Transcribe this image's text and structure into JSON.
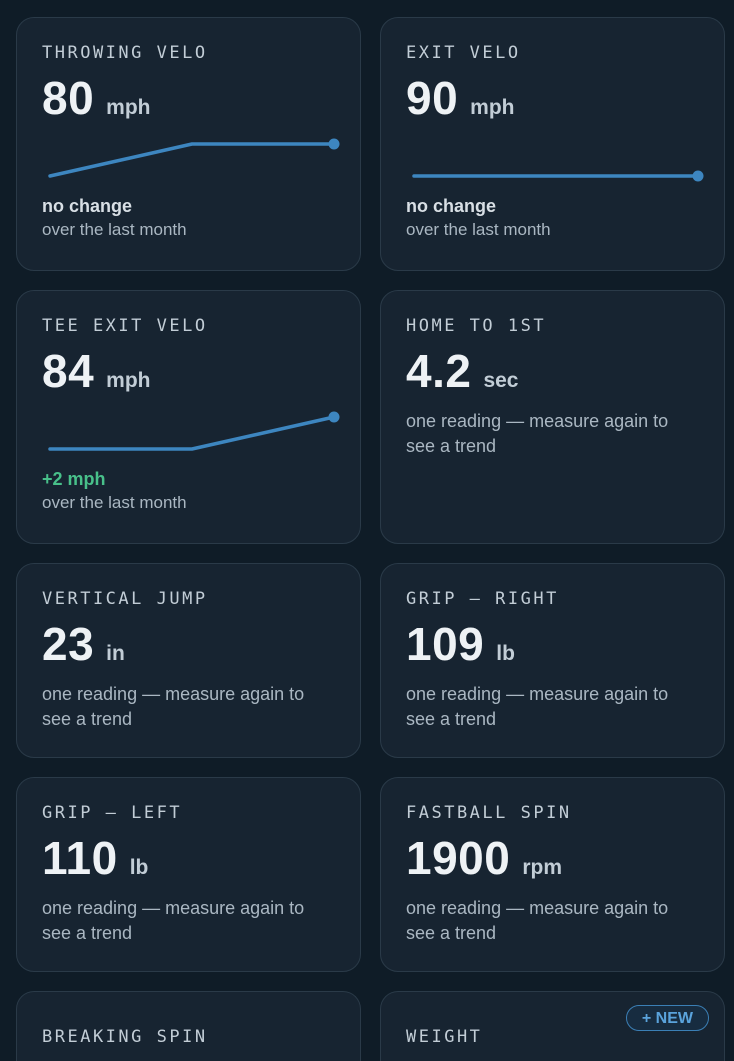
{
  "colors": {
    "background": "#0f1c27",
    "card": "#172431",
    "sparkline": "#3d86c0",
    "positive": "#48c08a"
  },
  "cards": [
    {
      "label": "THROWING VELO",
      "value": "80",
      "unit": "mph",
      "sparkline": [
        78,
        80,
        80
      ],
      "change": "no change",
      "caption": "over the last month"
    },
    {
      "label": "EXIT VELO",
      "value": "90",
      "unit": "mph",
      "sparkline": [
        90,
        90
      ],
      "change": "no change",
      "caption": "over the last month"
    },
    {
      "label": "TEE EXIT VELO",
      "value": "84",
      "unit": "mph",
      "sparkline": [
        82,
        82,
        84
      ],
      "change": "+2 mph",
      "caption": "over the last month"
    },
    {
      "label": "HOME TO 1ST",
      "value": "4.2",
      "unit": "sec",
      "note": "one reading — measure again to see a trend"
    },
    {
      "label": "VERTICAL JUMP",
      "value": "23",
      "unit": "in",
      "note": "one reading — measure again to see a trend"
    },
    {
      "label": "GRIP — RIGHT",
      "value": "109",
      "unit": "lb",
      "note": "one reading — measure again to see a trend"
    },
    {
      "label": "GRIP — LEFT",
      "value": "110",
      "unit": "lb",
      "note": "one reading — measure again to see a trend"
    },
    {
      "label": "FASTBALL SPIN",
      "value": "1900",
      "unit": "rpm",
      "note": "one reading — measure again to see a trend"
    },
    {
      "label": "BREAKING SPIN"
    },
    {
      "label": "WEIGHT",
      "new_button": "+ NEW"
    }
  ]
}
